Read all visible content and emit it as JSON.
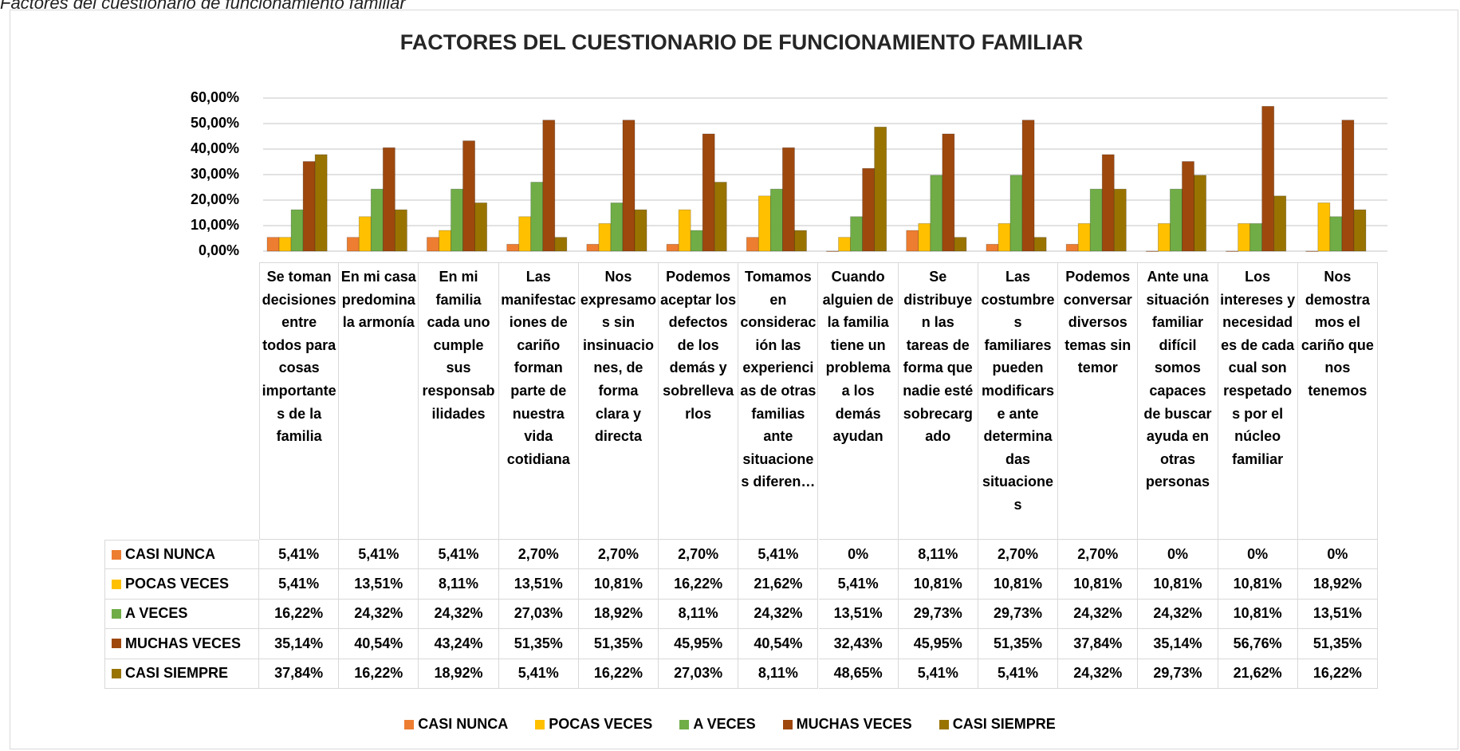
{
  "caption": "Factores del cuestionario de funcionamiento familiar",
  "chart_data": {
    "type": "bar",
    "title": "FACTORES DEL CUESTIONARIO DE FUNCIONAMIENTO FAMILIAR",
    "categories": [
      "Se toman decisiones entre todos para cosas importantes de la familia",
      "En mi casa predomina la armonía",
      "En mi familia cada uno cumple sus responsabilidades",
      "Las manifestaciones de cariño forman parte de nuestra vida cotidiana",
      "Nos expresamos sin insinuaciones, de forma clara y directa",
      "Podemos aceptar los defectos de los demás y sobrellevarlos",
      "Tomamos en consideración las experiencias de otras familias ante situaciones diferen…",
      "Cuando alguien de la familia tiene un problema a los demás ayudan",
      "Se distribuyen las tareas de forma que nadie esté sobrecargado",
      "Las costumbres familiares pueden modificarse ante determinadas situaciones",
      "Podemos conversar diversos temas sin temor",
      "Ante una situación familiar difícil somos capaces de buscar ayuda en otras personas",
      "Los intereses y necesidades de cada cual son respetados por el núcleo familiar",
      "Nos demostramos el cariño que nos tenemos"
    ],
    "series": [
      {
        "name": "CASI NUNCA",
        "color": "#ED7D31",
        "values": [
          5.41,
          5.41,
          5.41,
          2.7,
          2.7,
          2.7,
          5.41,
          0,
          8.11,
          2.7,
          2.7,
          0,
          0,
          0
        ],
        "value_labels": [
          "5,41%",
          "5,41%",
          "5,41%",
          "2,70%",
          "2,70%",
          "2,70%",
          "5,41%",
          "0%",
          "8,11%",
          "2,70%",
          "2,70%",
          "0%",
          "0%",
          "0%"
        ]
      },
      {
        "name": "POCAS VECES",
        "color": "#FFC000",
        "values": [
          5.41,
          13.51,
          8.11,
          13.51,
          10.81,
          16.22,
          21.62,
          5.41,
          10.81,
          10.81,
          10.81,
          10.81,
          10.81,
          18.92
        ],
        "value_labels": [
          "5,41%",
          "13,51%",
          "8,11%",
          "13,51%",
          "10,81%",
          "16,22%",
          "21,62%",
          "5,41%",
          "10,81%",
          "10,81%",
          "10,81%",
          "10,81%",
          "10,81%",
          "18,92%"
        ]
      },
      {
        "name": "A VECES",
        "color": "#70AD47",
        "values": [
          16.22,
          24.32,
          24.32,
          27.03,
          18.92,
          8.11,
          24.32,
          13.51,
          29.73,
          29.73,
          24.32,
          24.32,
          10.81,
          13.51
        ],
        "value_labels": [
          "16,22%",
          "24,32%",
          "24,32%",
          "27,03%",
          "18,92%",
          "8,11%",
          "24,32%",
          "13,51%",
          "29,73%",
          "29,73%",
          "24,32%",
          "24,32%",
          "10,81%",
          "13,51%"
        ]
      },
      {
        "name": "MUCHAS VECES",
        "color": "#9E480E",
        "values": [
          35.14,
          40.54,
          43.24,
          51.35,
          51.35,
          45.95,
          40.54,
          32.43,
          45.95,
          51.35,
          37.84,
          35.14,
          56.76,
          51.35
        ],
        "value_labels": [
          "35,14%",
          "40,54%",
          "43,24%",
          "51,35%",
          "51,35%",
          "45,95%",
          "40,54%",
          "32,43%",
          "45,95%",
          "51,35%",
          "37,84%",
          "35,14%",
          "56,76%",
          "51,35%"
        ]
      },
      {
        "name": "CASI SIEMPRE",
        "color": "#997300",
        "values": [
          37.84,
          16.22,
          18.92,
          5.41,
          16.22,
          27.03,
          8.11,
          48.65,
          5.41,
          5.41,
          24.32,
          29.73,
          21.62,
          16.22
        ],
        "value_labels": [
          "37,84%",
          "16,22%",
          "18,92%",
          "5,41%",
          "16,22%",
          "27,03%",
          "8,11%",
          "48,65%",
          "5,41%",
          "5,41%",
          "24,32%",
          "29,73%",
          "21,62%",
          "16,22%"
        ]
      }
    ],
    "ylim": [
      0,
      60
    ],
    "yticks": [
      {
        "value": 0,
        "label": "0,00%"
      },
      {
        "value": 10,
        "label": "10,00%"
      },
      {
        "value": 20,
        "label": "20,00%"
      },
      {
        "value": 30,
        "label": "30,00%"
      },
      {
        "value": 40,
        "label": "40,00%"
      },
      {
        "value": 50,
        "label": "50,00%"
      },
      {
        "value": 60,
        "label": "60,00%"
      }
    ],
    "grid": true,
    "legend": "bottom"
  }
}
